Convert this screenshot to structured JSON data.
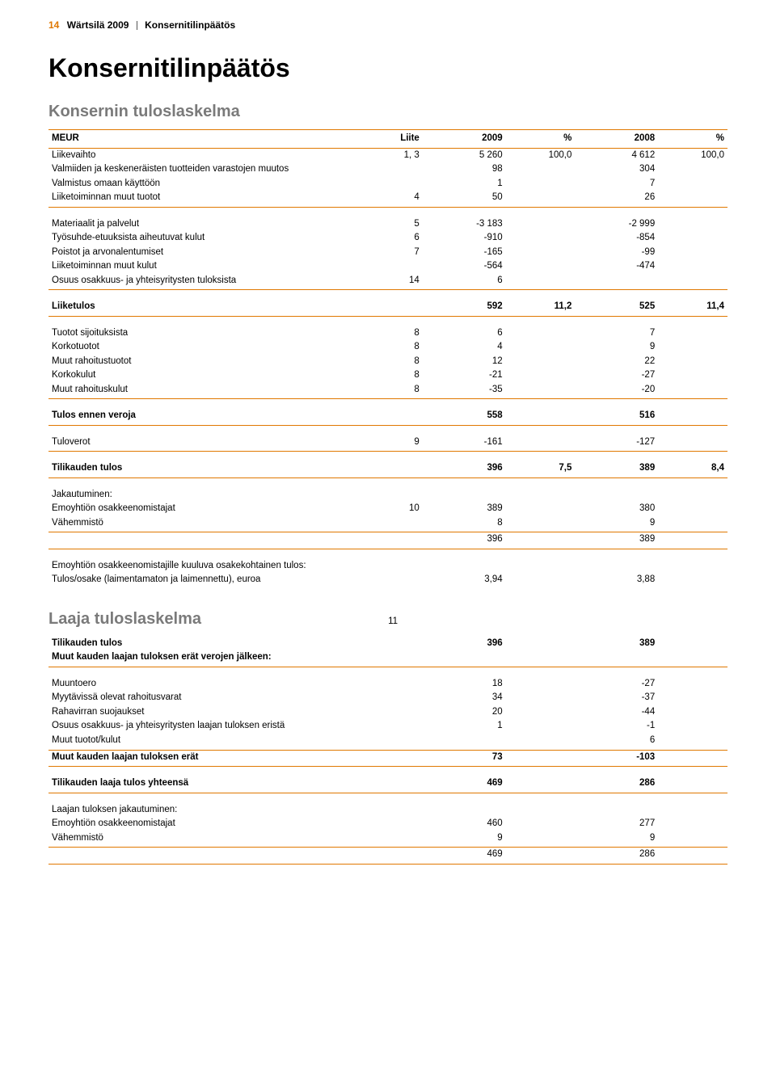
{
  "header": {
    "page_number": "14",
    "company_year": "Wärtsilä 2009",
    "section": "Konsernitilinpäätös"
  },
  "titles": {
    "main": "Konsernitilinpäätös",
    "sub1": "Konsernin tuloslaskelma",
    "sub2": "Laaja tuloslaskelma"
  },
  "columns": {
    "c0": "MEUR",
    "c1": "Liite",
    "c2": "2009",
    "c3": "%",
    "c4": "2008",
    "c5": "%"
  },
  "colors": {
    "accent": "#e07800",
    "subtitle": "#7a7a7a",
    "text": "#000000",
    "background": "#ffffff"
  },
  "rows": [
    {
      "type": "row",
      "label": "Liikevaihto",
      "note": "1, 3",
      "v1": "5 260",
      "p1": "100,0",
      "v2": "4 612",
      "p2": "100,0"
    },
    {
      "type": "row",
      "label": "Valmiiden ja keskeneräisten tuotteiden varastojen muutos",
      "note": "",
      "v1": "98",
      "p1": "",
      "v2": "304",
      "p2": ""
    },
    {
      "type": "row",
      "label": "Valmistus omaan käyttöön",
      "note": "",
      "v1": "1",
      "p1": "",
      "v2": "7",
      "p2": ""
    },
    {
      "type": "row",
      "label": "Liiketoiminnan muut tuotot",
      "note": "4",
      "v1": "50",
      "p1": "",
      "v2": "26",
      "p2": "",
      "rule_bot": true
    },
    {
      "type": "gap"
    },
    {
      "type": "row",
      "label": "Materiaalit ja palvelut",
      "note": "5",
      "v1": "-3 183",
      "p1": "",
      "v2": "-2 999",
      "p2": ""
    },
    {
      "type": "row",
      "label": "Työsuhde-etuuksista aiheutuvat kulut",
      "note": "6",
      "v1": "-910",
      "p1": "",
      "v2": "-854",
      "p2": ""
    },
    {
      "type": "row",
      "label": "Poistot ja arvonalentumiset",
      "note": "7",
      "v1": "-165",
      "p1": "",
      "v2": "-99",
      "p2": ""
    },
    {
      "type": "row",
      "label": "Liiketoiminnan muut kulut",
      "note": "",
      "v1": "-564",
      "p1": "",
      "v2": "-474",
      "p2": ""
    },
    {
      "type": "row",
      "label": "Osuus osakkuus- ja yhteisyritysten tuloksista",
      "note": "14",
      "v1": "6",
      "p1": "",
      "v2": "",
      "p2": "",
      "rule_bot": true
    },
    {
      "type": "gap"
    },
    {
      "type": "row",
      "bold": true,
      "label": "Liiketulos",
      "note": "",
      "v1": "592",
      "p1": "11,2",
      "v2": "525",
      "p2": "11,4",
      "rule_bot": true
    },
    {
      "type": "gap"
    },
    {
      "type": "row",
      "label": "Tuotot sijoituksista",
      "note": "8",
      "v1": "6",
      "p1": "",
      "v2": "7",
      "p2": ""
    },
    {
      "type": "row",
      "label": "Korkotuotot",
      "note": "8",
      "v1": "4",
      "p1": "",
      "v2": "9",
      "p2": ""
    },
    {
      "type": "row",
      "label": "Muut rahoitustuotot",
      "note": "8",
      "v1": "12",
      "p1": "",
      "v2": "22",
      "p2": ""
    },
    {
      "type": "row",
      "label": "Korkokulut",
      "note": "8",
      "v1": "-21",
      "p1": "",
      "v2": "-27",
      "p2": ""
    },
    {
      "type": "row",
      "label": "Muut rahoituskulut",
      "note": "8",
      "v1": "-35",
      "p1": "",
      "v2": "-20",
      "p2": "",
      "rule_bot": true
    },
    {
      "type": "gap"
    },
    {
      "type": "row",
      "bold": true,
      "label": "Tulos ennen veroja",
      "note": "",
      "v1": "558",
      "p1": "",
      "v2": "516",
      "p2": "",
      "rule_bot": true
    },
    {
      "type": "gap"
    },
    {
      "type": "row",
      "label": "Tuloverot",
      "note": "9",
      "v1": "-161",
      "p1": "",
      "v2": "-127",
      "p2": "",
      "rule_bot": true
    },
    {
      "type": "gap"
    },
    {
      "type": "row",
      "bold": true,
      "label": "Tilikauden tulos",
      "note": "",
      "v1": "396",
      "p1": "7,5",
      "v2": "389",
      "p2": "8,4",
      "rule_bot": true
    },
    {
      "type": "gap"
    },
    {
      "type": "row",
      "label": "Jakautuminen:",
      "note": "",
      "v1": "",
      "p1": "",
      "v2": "",
      "p2": ""
    },
    {
      "type": "row",
      "label": "Emoyhtiön osakkeenomistajat",
      "note": "10",
      "v1": "389",
      "p1": "",
      "v2": "380",
      "p2": ""
    },
    {
      "type": "row",
      "label": "Vähemmistö",
      "note": "",
      "v1": "8",
      "p1": "",
      "v2": "9",
      "p2": "",
      "rule_bot": true
    },
    {
      "type": "row",
      "label": "",
      "note": "",
      "v1": "396",
      "p1": "",
      "v2": "389",
      "p2": "",
      "rule_bot": true
    },
    {
      "type": "gap"
    },
    {
      "type": "row",
      "label": "Emoyhtiön osakkeenomistajille kuuluva osakekohtainen tulos:",
      "note": "",
      "v1": "",
      "p1": "",
      "v2": "",
      "p2": ""
    },
    {
      "type": "row",
      "label": "Tulos/osake (laimentamaton ja laimennettu), euroa",
      "note": "",
      "v1": "3,94",
      "p1": "",
      "v2": "3,88",
      "p2": ""
    }
  ],
  "laaja_note": "11",
  "rows2": [
    {
      "type": "row",
      "bold": true,
      "label": "Tilikauden tulos",
      "note": "",
      "v1": "396",
      "p1": "",
      "v2": "389",
      "p2": ""
    },
    {
      "type": "row",
      "bold": true,
      "label": "Muut kauden laajan tuloksen erät verojen jälkeen:",
      "note": "",
      "v1": "",
      "p1": "",
      "v2": "",
      "p2": "",
      "rule_bot": true
    },
    {
      "type": "gap"
    },
    {
      "type": "row",
      "label": "Muuntoero",
      "note": "",
      "v1": "18",
      "p1": "",
      "v2": "-27",
      "p2": ""
    },
    {
      "type": "row",
      "label": "Myytävissä olevat rahoitusvarat",
      "note": "",
      "v1": "34",
      "p1": "",
      "v2": "-37",
      "p2": ""
    },
    {
      "type": "row",
      "label": "Rahavirran suojaukset",
      "note": "",
      "v1": "20",
      "p1": "",
      "v2": "-44",
      "p2": ""
    },
    {
      "type": "row",
      "label": "Osuus osakkuus- ja yhteisyritysten laajan tuloksen eristä",
      "note": "",
      "v1": "1",
      "p1": "",
      "v2": "-1",
      "p2": ""
    },
    {
      "type": "row",
      "label": "Muut tuotot/kulut",
      "note": "",
      "v1": "",
      "p1": "",
      "v2": "6",
      "p2": "",
      "rule_bot": true
    },
    {
      "type": "row",
      "bold": true,
      "label": "Muut kauden laajan tuloksen erät",
      "note": "",
      "v1": "73",
      "p1": "",
      "v2": "-103",
      "p2": "",
      "rule_bot": true
    },
    {
      "type": "gap"
    },
    {
      "type": "row",
      "bold": true,
      "label": "Tilikauden laaja tulos yhteensä",
      "note": "",
      "v1": "469",
      "p1": "",
      "v2": "286",
      "p2": "",
      "rule_bot": true
    },
    {
      "type": "gap"
    },
    {
      "type": "row",
      "label": "Laajan tuloksen jakautuminen:",
      "note": "",
      "v1": "",
      "p1": "",
      "v2": "",
      "p2": ""
    },
    {
      "type": "row",
      "label": "Emoyhtiön osakkeenomistajat",
      "note": "",
      "v1": "460",
      "p1": "",
      "v2": "277",
      "p2": ""
    },
    {
      "type": "row",
      "label": "Vähemmistö",
      "note": "",
      "v1": "9",
      "p1": "",
      "v2": "9",
      "p2": "",
      "rule_bot": true
    },
    {
      "type": "row",
      "label": "",
      "note": "",
      "v1": "469",
      "p1": "",
      "v2": "286",
      "p2": "",
      "rule_bot": true
    }
  ]
}
